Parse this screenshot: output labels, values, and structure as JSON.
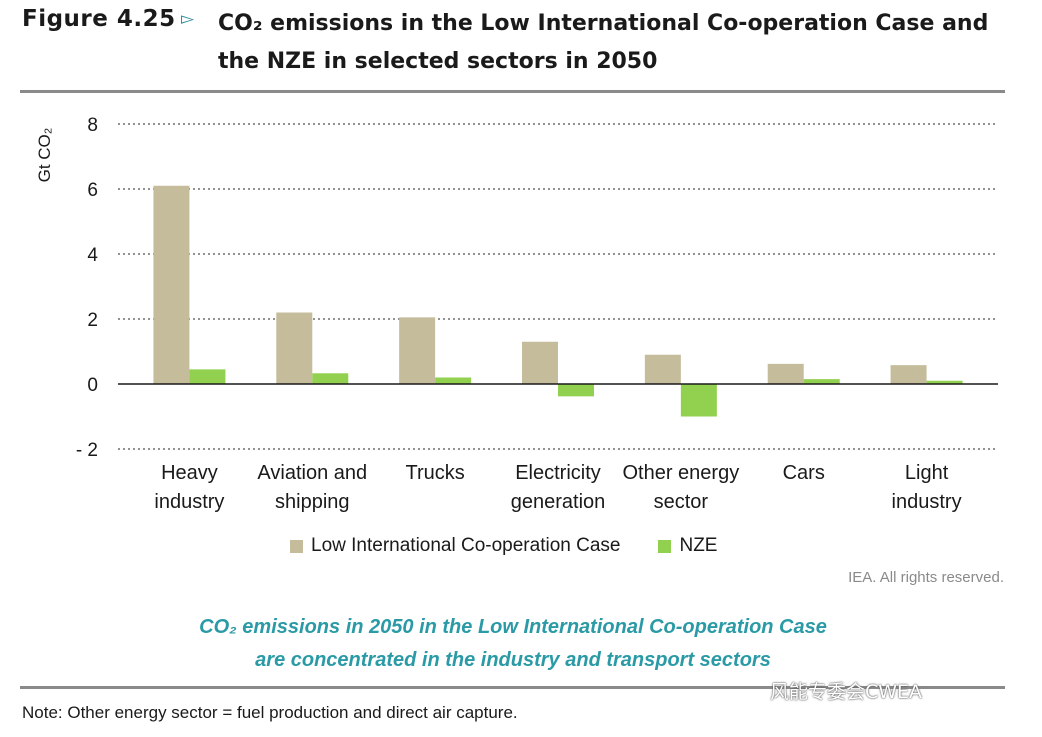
{
  "header": {
    "figure_label": "Figure 4.25",
    "arrow": "▻",
    "title_line1": "CO₂ emissions in the Low International Co-operation Case and",
    "title_line2": "the NZE in selected sectors in 2050"
  },
  "chart_data": {
    "type": "bar",
    "ylabel": "Gt CO₂",
    "ylim": [
      -2,
      8
    ],
    "yticks": [
      8,
      6,
      4,
      2,
      0,
      -2
    ],
    "ytick_labels": [
      "8",
      "6",
      "4",
      "2",
      "0",
      "- 2"
    ],
    "grid": "horizontal dotted",
    "categories": [
      [
        "Heavy",
        "industry"
      ],
      [
        "Aviation and",
        "shipping"
      ],
      [
        "Trucks"
      ],
      [
        "Electricity",
        "generation"
      ],
      [
        "Other energy",
        "sector"
      ],
      [
        "Cars"
      ],
      [
        "Light",
        "industry"
      ]
    ],
    "series": [
      {
        "name": "Low International Co-operation Case",
        "color": "#c4bc9b",
        "values": [
          6.1,
          2.2,
          2.05,
          1.3,
          0.9,
          0.62,
          0.58
        ]
      },
      {
        "name": "NZE",
        "color": "#92d050",
        "values": [
          0.45,
          0.33,
          0.2,
          -0.38,
          -1.0,
          0.15,
          0.1
        ]
      }
    ],
    "legend_position": "bottom"
  },
  "footer": {
    "rights": "IEA. All rights reserved.",
    "caption_line1": "CO₂ emissions in 2050 in the Low International Co-operation Case",
    "caption_line2": "are concentrated in the industry and transport sectors",
    "note": "Note: Other energy sector = fuel production and direct air capture.",
    "watermark": "风能专委会CWEA"
  }
}
